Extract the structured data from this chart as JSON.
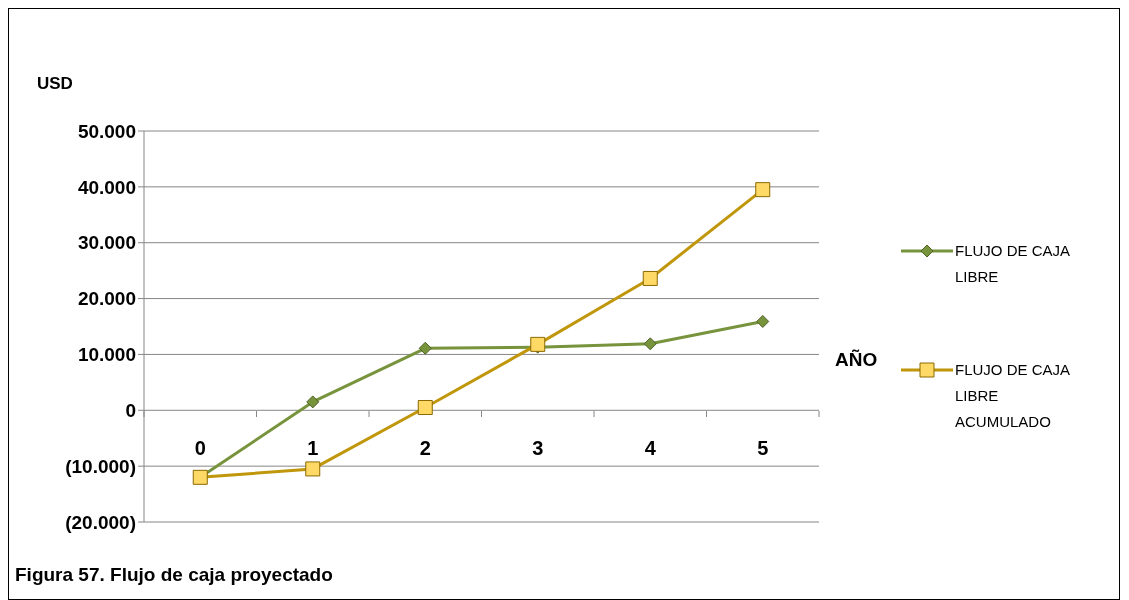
{
  "chart_data": {
    "type": "line",
    "title": "Figura 57.  Flujo de caja proyectado",
    "annotations": [
      "AÑO"
    ],
    "ylabel": "USD",
    "categories": [
      "0",
      "1",
      "2",
      "3",
      "4",
      "5"
    ],
    "series": [
      {
        "name": "FLUJO DE CAJA LIBRE",
        "color": "#77933c",
        "marker": "diamond",
        "values": [
          -12000,
          1500,
          11100,
          11300,
          11900,
          15900
        ]
      },
      {
        "name": "FLUJO DE CAJA LIBRE ACUMULADO",
        "color": "#c0960a",
        "marker": "square",
        "values": [
          -12000,
          -10500,
          500,
          11800,
          23600,
          39500
        ]
      }
    ],
    "ylim": [
      -20000,
      50000
    ],
    "yticks": [
      {
        "value": -20000,
        "label": "(20.000)"
      },
      {
        "value": -10000,
        "label": "(10.000)"
      },
      {
        "value": 0,
        "label": "0"
      },
      {
        "value": 10000,
        "label": "10.000"
      },
      {
        "value": 20000,
        "label": "20.000"
      },
      {
        "value": 30000,
        "label": "30.000"
      },
      {
        "value": 40000,
        "label": "40.000"
      },
      {
        "value": 50000,
        "label": "50.000"
      }
    ],
    "grid": "y",
    "legend": "right",
    "line_style": "solid"
  }
}
